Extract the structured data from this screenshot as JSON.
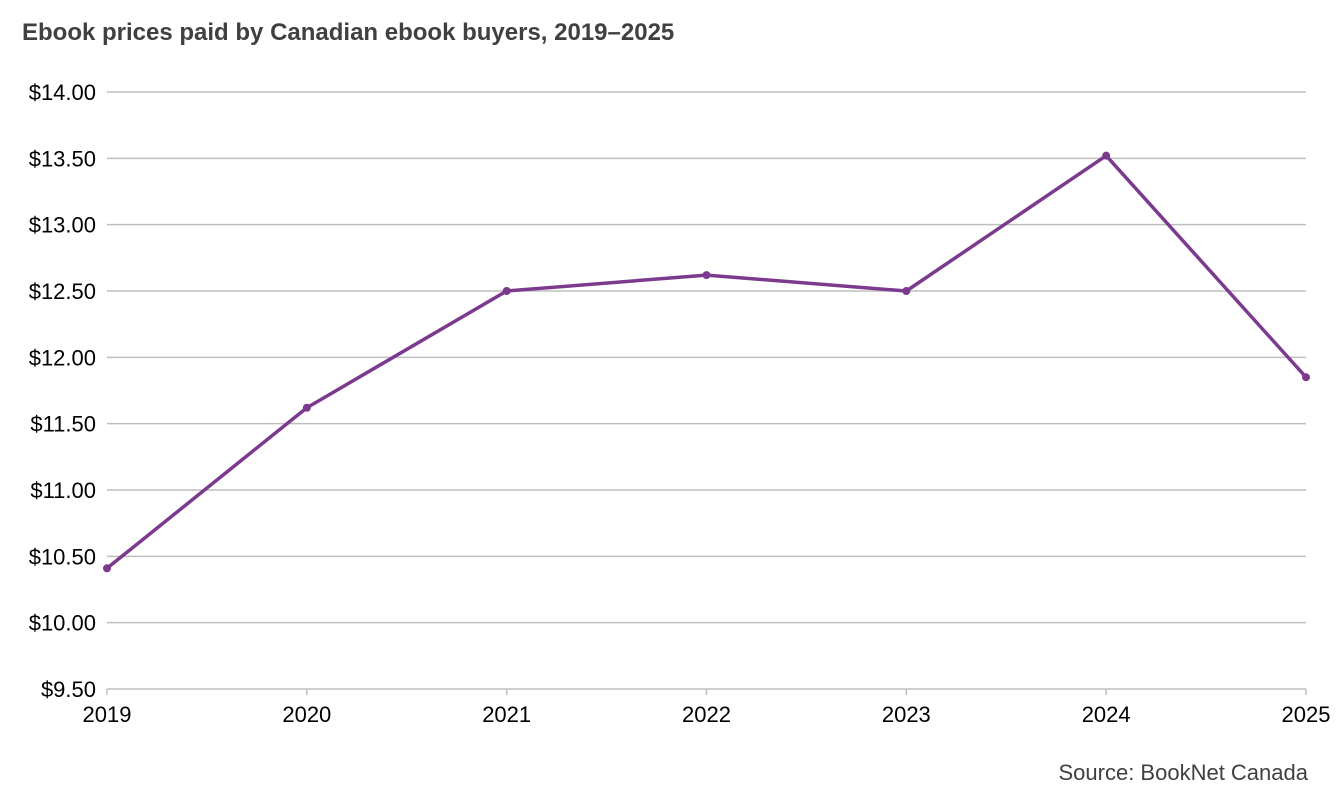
{
  "chart_data": {
    "type": "line",
    "title": "Ebook prices paid by Canadian ebook buyers, 2019–2025",
    "source": "Source: BookNet Canada",
    "xlabel": "",
    "ylabel": "",
    "categories": [
      "2019",
      "2020",
      "2021",
      "2022",
      "2023",
      "2024",
      "2025"
    ],
    "series": [
      {
        "values": [
          10.41,
          11.62,
          12.5,
          12.62,
          12.5,
          13.52,
          11.85
        ]
      }
    ],
    "ylim": [
      9.5,
      14.0
    ],
    "y_ticks": [
      9.5,
      10.0,
      10.5,
      11.0,
      11.5,
      12.0,
      12.5,
      13.0,
      13.5,
      14.0
    ],
    "y_tick_labels": [
      "$9.50",
      "$10.00",
      "$10.50",
      "$11.00",
      "$11.50",
      "$12.00",
      "$12.50",
      "$13.00",
      "$13.50",
      "$14.00"
    ],
    "grid": true,
    "legend": "none",
    "line_color": "#7B3A8E",
    "grid_color": "#BFBFBF"
  }
}
